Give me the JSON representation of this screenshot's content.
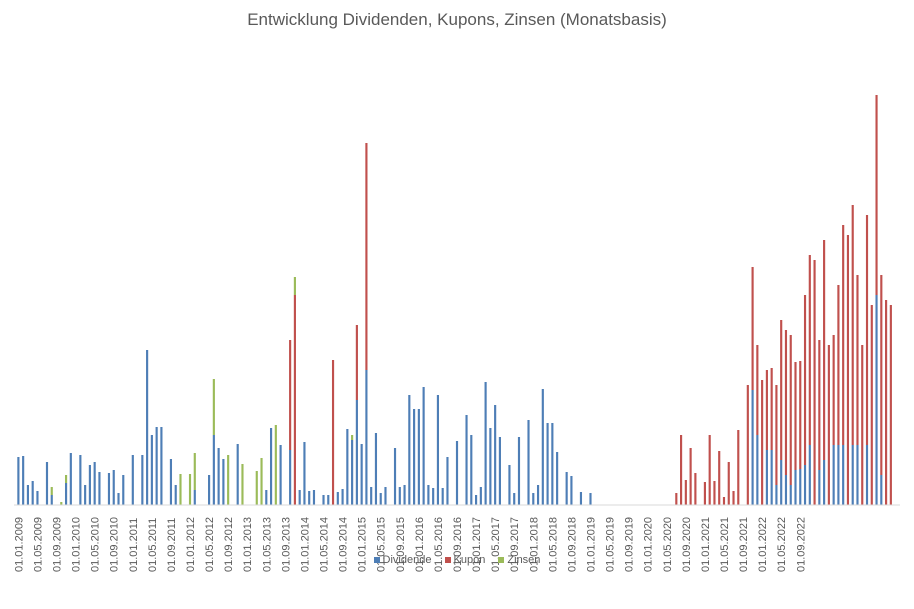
{
  "chart_data": {
    "type": "bar",
    "stacked": true,
    "title": "Entwicklung Dividenden, Kupons, Zinsen (Monatsbasis)",
    "xlabel": "",
    "ylabel": "",
    "y_axis_labels": "none",
    "gridlines": false,
    "legend_position": "bottom",
    "ylim": [
      0,
      415
    ],
    "colors": {
      "Dividende": "#4e7eb6",
      "Kupon": "#c0504d",
      "Zinsen": "#9bbb59"
    },
    "tick_labels": [
      "01.01.2009",
      "01.05.2009",
      "01.09.2009",
      "01.01.2010",
      "01.05.2010",
      "01.09.2010",
      "01.01.2011",
      "01.05.2011",
      "01.09.2011",
      "01.01.2012",
      "01.05.2012",
      "01.09.2012",
      "01.01.2013",
      "01.05.2013",
      "01.09.2013",
      "01.01.2014",
      "01.05.2014",
      "01.09.2014",
      "01.01.2015",
      "01.05.2015",
      "01.09.2015",
      "01.01.2016",
      "01.05.2016",
      "01.09.2016",
      "01.01.2017",
      "01.05.2017",
      "01.09.2017",
      "01.01.2018",
      "01.05.2018",
      "01.09.2018",
      "01.01.2019",
      "01.05.2019",
      "01.09.2019",
      "01.01.2020",
      "01.05.2020",
      "01.09.2020",
      "01.01.2021",
      "01.05.2021",
      "01.09.2021",
      "01.01.2022",
      "01.05.2022",
      "01.09.2022"
    ],
    "series": [
      {
        "name": "Dividende",
        "values": [
          48,
          0,
          49,
          20,
          0,
          24,
          14,
          8,
          43,
          10,
          0,
          0,
          52,
          0,
          50,
          40,
          0,
          10,
          46,
          0,
          46,
          33,
          0,
          0,
          35,
          0,
          48,
          20,
          0,
          0,
          48,
          0,
          48,
          90,
          150,
          78,
          78,
          0,
          43,
          20,
          10,
          0,
          0,
          0,
          26,
          0,
          0,
          0,
          56,
          47,
          0,
          43,
          0,
          0,
          0,
          33,
          0,
          0,
          15,
          0,
          0,
          10,
          10,
          70,
          16,
          0,
          0,
          0,
          50,
          0,
          15,
          0,
          15,
          0,
          10,
          16,
          25,
          68,
          74,
          77,
          120,
          0,
          20,
          18,
          0,
          78,
          0,
          0,
          20,
          56,
          0,
          5,
          10,
          5,
          15,
          0,
          0,
          22,
          85,
          80,
          0,
          115,
          20,
          0,
          18,
          0,
          15,
          48,
          0,
          4,
          58,
          0,
          0,
          120,
          0,
          95,
          0,
          55,
          12,
          0,
          40,
          0,
          60,
          0,
          0,
          28,
          35,
          0,
          0,
          85,
          0,
          0,
          45,
          0,
          0,
          0,
          31,
          35,
          0,
          0,
          0,
          18,
          0,
          0,
          2,
          0,
          0,
          11,
          0,
          0,
          0,
          0,
          0,
          0,
          0,
          0,
          0,
          0,
          0,
          0,
          0,
          0,
          0,
          0,
          0,
          0,
          0,
          0,
          0,
          0,
          0,
          0,
          0,
          0,
          0,
          0,
          0,
          0,
          0,
          0,
          0,
          0,
          0,
          0,
          0,
          0,
          0,
          0,
          0,
          0,
          0,
          0,
          0,
          0,
          0,
          0,
          0,
          0,
          0,
          10,
          0,
          0,
          0,
          0,
          0,
          0,
          0,
          5,
          0,
          0,
          0,
          40,
          25,
          0,
          0,
          0,
          0,
          0,
          0,
          5,
          0,
          0,
          0,
          5,
          0,
          0,
          0,
          0,
          0,
          0,
          0,
          5,
          0,
          0,
          0,
          5,
          0,
          0,
          115,
          55,
          0,
          120,
          50,
          0,
          0,
          55,
          0,
          0,
          0,
          0,
          0,
          0,
          0,
          0,
          0,
          0,
          0,
          0,
          0,
          0,
          0,
          0,
          0,
          0,
          0,
          0,
          0,
          0,
          0,
          0,
          0,
          0,
          0,
          0,
          0,
          0,
          0,
          0,
          0,
          0,
          0,
          0,
          0,
          0,
          0,
          0,
          0,
          0
        ]
      },
      {
        "name": "Kupon",
        "values": []
      },
      {
        "name": "Zinsen",
        "values": []
      }
    ],
    "bars": [
      {
        "d": 48,
        "k": 0,
        "z": 0
      },
      {
        "d": 49,
        "k": 0,
        "z": 0
      },
      {
        "d": 20,
        "k": 0,
        "z": 0
      },
      {
        "d": 24,
        "k": 0,
        "z": 0
      },
      {
        "d": 14,
        "k": 0,
        "z": 0
      },
      {
        "d": 0,
        "k": 0,
        "z": 0
      },
      {
        "d": 43,
        "k": 0,
        "z": 0
      },
      {
        "d": 10,
        "k": 0,
        "z": 8
      },
      {
        "d": 0,
        "k": 0,
        "z": 0
      },
      {
        "d": 0,
        "k": 0,
        "z": 3
      },
      {
        "d": 22,
        "k": 0,
        "z": 8
      },
      {
        "d": 52,
        "k": 0,
        "z": 0
      },
      {
        "d": 0,
        "k": 0,
        "z": 0
      },
      {
        "d": 50,
        "k": 0,
        "z": 0
      },
      {
        "d": 20,
        "k": 0,
        "z": 0
      },
      {
        "d": 40,
        "k": 0,
        "z": 0
      },
      {
        "d": 43,
        "k": 0,
        "z": 0
      },
      {
        "d": 33,
        "k": 0,
        "z": 0
      },
      {
        "d": 0,
        "k": 0,
        "z": 0
      },
      {
        "d": 32,
        "k": 0,
        "z": 0
      },
      {
        "d": 35,
        "k": 0,
        "z": 0
      },
      {
        "d": 12,
        "k": 0,
        "z": 0
      },
      {
        "d": 30,
        "k": 0,
        "z": 0
      },
      {
        "d": 0,
        "k": 0,
        "z": 0
      },
      {
        "d": 50,
        "k": 0,
        "z": 0
      },
      {
        "d": 0,
        "k": 0,
        "z": 0
      },
      {
        "d": 50,
        "k": 0,
        "z": 0
      },
      {
        "d": 155,
        "k": 0,
        "z": 0
      },
      {
        "d": 70,
        "k": 0,
        "z": 0
      },
      {
        "d": 78,
        "k": 0,
        "z": 0
      },
      {
        "d": 78,
        "k": 0,
        "z": 0
      },
      {
        "d": 0,
        "k": 0,
        "z": 0
      },
      {
        "d": 46,
        "k": 0,
        "z": 0
      },
      {
        "d": 20,
        "k": 0,
        "z": 0
      },
      {
        "d": 0,
        "k": 0,
        "z": 31
      },
      {
        "d": 0,
        "k": 0,
        "z": 0
      },
      {
        "d": 0,
        "k": 0,
        "z": 31
      },
      {
        "d": 15,
        "k": 0,
        "z": 37
      },
      {
        "d": 0,
        "k": 0,
        "z": 0
      },
      {
        "d": 0,
        "k": 0,
        "z": 0
      },
      {
        "d": 30,
        "k": 0,
        "z": 0
      },
      {
        "d": 70,
        "k": 0,
        "z": 56
      },
      {
        "d": 57,
        "k": 0,
        "z": 0
      },
      {
        "d": 46,
        "k": 0,
        "z": 0
      },
      {
        "d": 0,
        "k": 0,
        "z": 50
      },
      {
        "d": 0,
        "k": 0,
        "z": 0
      },
      {
        "d": 61,
        "k": 0,
        "z": 0
      },
      {
        "d": 0,
        "k": 0,
        "z": 41
      },
      {
        "d": 0,
        "k": 0,
        "z": 0
      },
      {
        "d": 0,
        "k": 0,
        "z": 0
      },
      {
        "d": 0,
        "k": 0,
        "z": 34
      },
      {
        "d": 0,
        "k": 0,
        "z": 47
      },
      {
        "d": 15,
        "k": 0,
        "z": 0
      },
      {
        "d": 77,
        "k": 0,
        "z": 0
      },
      {
        "d": 0,
        "k": 0,
        "z": 80
      },
      {
        "d": 60,
        "k": 0,
        "z": 0
      },
      {
        "d": 0,
        "k": 0,
        "z": 0
      },
      {
        "d": 55,
        "k": 110,
        "z": 0
      },
      {
        "d": 0,
        "k": 210,
        "z": 18
      },
      {
        "d": 15,
        "k": 0,
        "z": 0
      },
      {
        "d": 63,
        "k": 0,
        "z": 0
      },
      {
        "d": 14,
        "k": 0,
        "z": 0
      },
      {
        "d": 15,
        "k": 0,
        "z": 0
      },
      {
        "d": 0,
        "k": 0,
        "z": 0
      },
      {
        "d": 10,
        "k": 0,
        "z": 0
      },
      {
        "d": 10,
        "k": 0,
        "z": 0
      },
      {
        "d": 0,
        "k": 145,
        "z": 0
      },
      {
        "d": 13,
        "k": 0,
        "z": 0
      },
      {
        "d": 16,
        "k": 0,
        "z": 0
      },
      {
        "d": 76,
        "k": 0,
        "z": 0
      },
      {
        "d": 65,
        "k": 0,
        "z": 5
      },
      {
        "d": 105,
        "k": 75,
        "z": 0
      },
      {
        "d": 61,
        "k": 0,
        "z": 0
      },
      {
        "d": 135,
        "k": 227,
        "z": 0
      },
      {
        "d": 18,
        "k": 0,
        "z": 0
      },
      {
        "d": 72,
        "k": 0,
        "z": 0
      },
      {
        "d": 12,
        "k": 0,
        "z": 0
      },
      {
        "d": 18,
        "k": 0,
        "z": 0
      },
      {
        "d": 0,
        "k": 0,
        "z": 0
      },
      {
        "d": 57,
        "k": 0,
        "z": 0
      },
      {
        "d": 18,
        "k": 0,
        "z": 0
      },
      {
        "d": 20,
        "k": 0,
        "z": 0
      },
      {
        "d": 110,
        "k": 0,
        "z": 0
      },
      {
        "d": 96,
        "k": 0,
        "z": 0
      },
      {
        "d": 96,
        "k": 0,
        "z": 0
      },
      {
        "d": 118,
        "k": 0,
        "z": 0
      },
      {
        "d": 20,
        "k": 0,
        "z": 0
      },
      {
        "d": 17,
        "k": 0,
        "z": 0
      },
      {
        "d": 110,
        "k": 0,
        "z": 0
      },
      {
        "d": 17,
        "k": 0,
        "z": 0
      },
      {
        "d": 48,
        "k": 0,
        "z": 0
      },
      {
        "d": 0,
        "k": 0,
        "z": 0
      },
      {
        "d": 64,
        "k": 0,
        "z": 0
      },
      {
        "d": 0,
        "k": 0,
        "z": 0
      },
      {
        "d": 90,
        "k": 0,
        "z": 0
      },
      {
        "d": 70,
        "k": 0,
        "z": 0
      },
      {
        "d": 10,
        "k": 0,
        "z": 0
      },
      {
        "d": 18,
        "k": 0,
        "z": 0
      },
      {
        "d": 123,
        "k": 0,
        "z": 0
      },
      {
        "d": 77,
        "k": 0,
        "z": 0
      },
      {
        "d": 100,
        "k": 0,
        "z": 0
      },
      {
        "d": 68,
        "k": 0,
        "z": 0
      },
      {
        "d": 0,
        "k": 0,
        "z": 0
      },
      {
        "d": 40,
        "k": 0,
        "z": 0
      },
      {
        "d": 12,
        "k": 0,
        "z": 0
      },
      {
        "d": 68,
        "k": 0,
        "z": 0
      },
      {
        "d": 0,
        "k": 0,
        "z": 0
      },
      {
        "d": 85,
        "k": 0,
        "z": 0
      },
      {
        "d": 12,
        "k": 0,
        "z": 0
      },
      {
        "d": 20,
        "k": 0,
        "z": 0
      },
      {
        "d": 116,
        "k": 0,
        "z": 0
      },
      {
        "d": 82,
        "k": 0,
        "z": 0
      },
      {
        "d": 82,
        "k": 0,
        "z": 0
      },
      {
        "d": 53,
        "k": 0,
        "z": 0
      },
      {
        "d": 0,
        "k": 0,
        "z": 0
      },
      {
        "d": 33,
        "k": 0,
        "z": 0
      },
      {
        "d": 29,
        "k": 0,
        "z": 0
      },
      {
        "d": 0,
        "k": 0,
        "z": 0
      },
      {
        "d": 13,
        "k": 0,
        "z": 0
      },
      {
        "d": 0,
        "k": 0,
        "z": 0
      },
      {
        "d": 12,
        "k": 0,
        "z": 0
      },
      {
        "d": 0,
        "k": 0,
        "z": 0
      },
      {
        "d": 0,
        "k": 0,
        "z": 0
      },
      {
        "d": 0,
        "k": 0,
        "z": 0
      },
      {
        "d": 0,
        "k": 0,
        "z": 0
      },
      {
        "d": 0,
        "k": 0,
        "z": 0
      },
      {
        "d": 0,
        "k": 0,
        "z": 0
      },
      {
        "d": 0,
        "k": 0,
        "z": 0
      },
      {
        "d": 0,
        "k": 0,
        "z": 0
      },
      {
        "d": 0,
        "k": 0,
        "z": 0
      },
      {
        "d": 0,
        "k": 0,
        "z": 0
      },
      {
        "d": 0,
        "k": 0,
        "z": 0
      },
      {
        "d": 0,
        "k": 0,
        "z": 0
      },
      {
        "d": 0,
        "k": 0,
        "z": 0
      },
      {
        "d": 0,
        "k": 0,
        "z": 0
      },
      {
        "d": 0,
        "k": 0,
        "z": 0
      },
      {
        "d": 0,
        "k": 0,
        "z": 0
      },
      {
        "d": 0,
        "k": 0,
        "z": 0
      },
      {
        "d": 0,
        "k": 12,
        "z": 0
      },
      {
        "d": 0,
        "k": 70,
        "z": 0
      },
      {
        "d": 0,
        "k": 25,
        "z": 0
      },
      {
        "d": 0,
        "k": 57,
        "z": 0
      },
      {
        "d": 0,
        "k": 32,
        "z": 0
      },
      {
        "d": 0,
        "k": 0,
        "z": 0
      },
      {
        "d": 0,
        "k": 23,
        "z": 0
      },
      {
        "d": 0,
        "k": 70,
        "z": 0
      },
      {
        "d": 0,
        "k": 24,
        "z": 0
      },
      {
        "d": 0,
        "k": 54,
        "z": 0
      },
      {
        "d": 0,
        "k": 8,
        "z": 0
      },
      {
        "d": 0,
        "k": 43,
        "z": 0
      },
      {
        "d": 0,
        "k": 14,
        "z": 0
      },
      {
        "d": 0,
        "k": 75,
        "z": 0
      },
      {
        "d": 0,
        "k": 0,
        "z": 0
      },
      {
        "d": 0,
        "k": 120,
        "z": 0
      },
      {
        "d": 115,
        "k": 123,
        "z": 0
      },
      {
        "d": 70,
        "k": 90,
        "z": 0
      },
      {
        "d": 0,
        "k": 125,
        "z": 0
      },
      {
        "d": 55,
        "k": 80,
        "z": 0
      },
      {
        "d": 55,
        "k": 82,
        "z": 0
      },
      {
        "d": 20,
        "k": 100,
        "z": 0
      },
      {
        "d": 45,
        "k": 140,
        "z": 0
      },
      {
        "d": 30,
        "k": 145,
        "z": 0
      },
      {
        "d": 20,
        "k": 150,
        "z": 0
      },
      {
        "d": 35,
        "k": 108,
        "z": 0
      },
      {
        "d": 36,
        "k": 108,
        "z": 0
      },
      {
        "d": 40,
        "k": 170,
        "z": 0
      },
      {
        "d": 60,
        "k": 190,
        "z": 0
      },
      {
        "d": 0,
        "k": 245,
        "z": 0
      },
      {
        "d": 35,
        "k": 130,
        "z": 0
      },
      {
        "d": 45,
        "k": 220,
        "z": 0
      },
      {
        "d": 0,
        "k": 160,
        "z": 0
      },
      {
        "d": 60,
        "k": 110,
        "z": 0
      },
      {
        "d": 60,
        "k": 160,
        "z": 0
      },
      {
        "d": 60,
        "k": 220,
        "z": 0
      },
      {
        "d": 0,
        "k": 270,
        "z": 0
      },
      {
        "d": 60,
        "k": 240,
        "z": 0
      },
      {
        "d": 60,
        "k": 170,
        "z": 0
      },
      {
        "d": 0,
        "k": 160,
        "z": 0
      },
      {
        "d": 60,
        "k": 230,
        "z": 0
      },
      {
        "d": 0,
        "k": 200,
        "z": 0
      },
      {
        "d": 210,
        "k": 200,
        "z": 0
      },
      {
        "d": 30,
        "k": 200,
        "z": 0
      },
      {
        "d": 0,
        "k": 205,
        "z": 0
      },
      {
        "d": 0,
        "k": 200,
        "z": 0
      },
      {
        "d": 0,
        "k": 0,
        "z": 0
      }
    ]
  },
  "legend": {
    "dividende": "Dividende",
    "kupon": "Kupon",
    "zinsen": "Zinsen"
  }
}
